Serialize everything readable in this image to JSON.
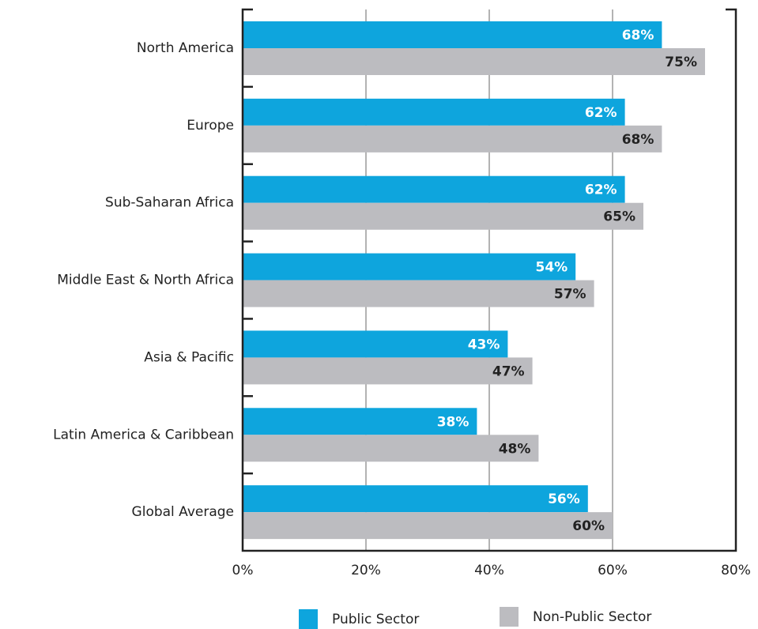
{
  "chart_data": {
    "type": "bar",
    "orientation": "horizontal",
    "categories": [
      "North America",
      "Europe",
      "Sub-Saharan Africa",
      "Middle East & North Africa",
      "Asia & Pacific",
      "Latin America & Caribbean",
      "Global Average"
    ],
    "series": [
      {
        "name": "Public Sector",
        "color": "#0ea5dd",
        "values": [
          68,
          62,
          62,
          54,
          43,
          38,
          56
        ],
        "value_labels": [
          "68%",
          "62%",
          "62%",
          "54%",
          "43%",
          "38%",
          "56%"
        ]
      },
      {
        "name": "Non-Public Sector",
        "color": "#bcbcc0",
        "values": [
          75,
          68,
          65,
          57,
          47,
          48,
          60
        ],
        "value_labels": [
          "75%",
          "68%",
          "65%",
          "57%",
          "47%",
          "48%",
          "60%"
        ]
      }
    ],
    "xlim": [
      0,
      80
    ],
    "xticks": [
      {
        "value": 0,
        "label": "0%"
      },
      {
        "value": 20,
        "label": "20%"
      },
      {
        "value": 40,
        "label": "40%"
      },
      {
        "value": 60,
        "label": "60%"
      },
      {
        "value": 80,
        "label": "80%"
      }
    ],
    "grid": true,
    "legend": "bottom"
  }
}
